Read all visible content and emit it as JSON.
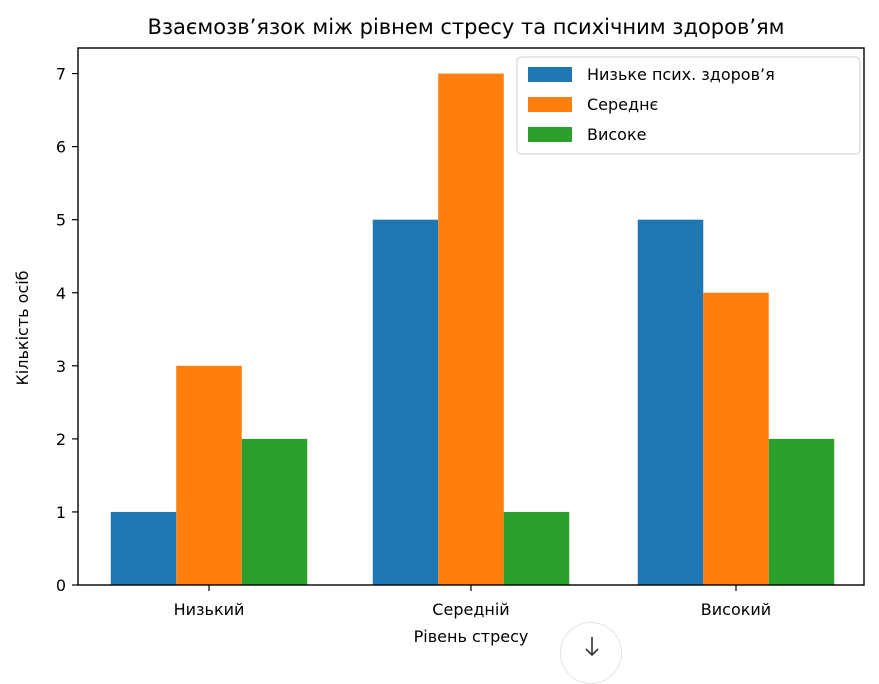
{
  "chart_data": {
    "type": "bar",
    "title": "Взаємозв’язок між рівнем стресу та психічним здоров’ям",
    "xlabel": "Рівень стресу",
    "ylabel": "Кількість осіб",
    "categories": [
      "Низький",
      "Середній",
      "Високий"
    ],
    "series": [
      {
        "name": "Низьке псих. здоров’я",
        "values": [
          1,
          5,
          5
        ],
        "color": "#1f77b4"
      },
      {
        "name": "Середнє",
        "values": [
          3,
          7,
          4
        ],
        "color": "#ff7f0e"
      },
      {
        "name": "Високе",
        "values": [
          2,
          1,
          2
        ],
        "color": "#2ca02c"
      }
    ],
    "yticks": [
      0,
      1,
      2,
      3,
      4,
      5,
      6,
      7
    ],
    "ylim": [
      0,
      7.35
    ],
    "grid": false,
    "legend_position": "top-right"
  },
  "overlay": {
    "download_icon": "download-icon"
  }
}
